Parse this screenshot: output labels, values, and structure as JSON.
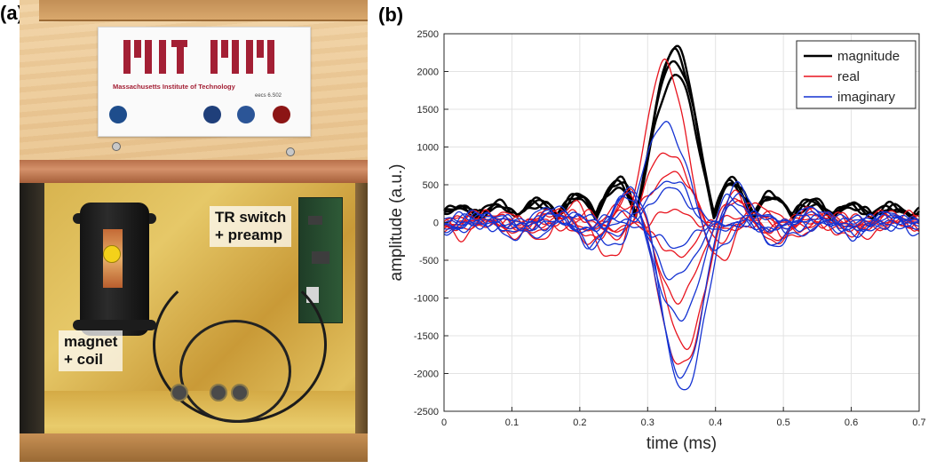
{
  "panels": {
    "a_label": "(a)",
    "b_label": "(b)"
  },
  "photo": {
    "subject": "MRI hardware enclosure",
    "labels": {
      "switch_line1": "TR switch",
      "switch_line2": "+ preamp",
      "magnet_line1": "magnet",
      "magnet_line2": "+ coil"
    },
    "sign": {
      "institution": "Massachusetts Institute of Technology",
      "course": "eecs 6.S02"
    },
    "colors": {
      "mit_red": "#a31f34",
      "gold_shield": "#d8b44f",
      "copper": "#b8704a"
    }
  },
  "chart_data": {
    "type": "line",
    "xlabel": "time (ms)",
    "ylabel": "amplitude (a.u.)",
    "xlim": [
      0,
      0.7
    ],
    "ylim": [
      -2500,
      2500
    ],
    "xticks": [
      0,
      0.1,
      0.2,
      0.3,
      0.4,
      0.5,
      0.6,
      0.7
    ],
    "xtick_labels": [
      "0",
      "0.1",
      "0.2",
      "0.3",
      "0.4",
      "0.5",
      "0.6",
      "0.7"
    ],
    "yticks": [
      -2500,
      -2000,
      -1500,
      -1000,
      -500,
      0,
      500,
      1000,
      1500,
      2000,
      2500
    ],
    "ytick_labels": [
      "-2500",
      "-2000",
      "-1500",
      "-1000",
      "-500",
      "0",
      "500",
      "1000",
      "1500",
      "2000",
      "2500"
    ],
    "grid": true,
    "legend_position": "top-right",
    "legend": [
      {
        "name": "magnitude",
        "color": "#000000"
      },
      {
        "name": "real",
        "color": "#e8141e"
      },
      {
        "name": "imaginary",
        "color": "#1432d2"
      }
    ],
    "peak_time_ms": 0.34,
    "series": [
      {
        "name": "magnitude",
        "color": "#000000",
        "count": 4,
        "peaks": [
          2230,
          2170,
          2080,
          1880
        ]
      },
      {
        "name": "real",
        "color": "#e8141e",
        "count": 8,
        "peaks": [
          2120,
          950,
          620,
          180,
          -420,
          -1050,
          -1900,
          -1620
        ]
      },
      {
        "name": "imaginary",
        "color": "#1432d2",
        "count": 8,
        "peaks": [
          1370,
          560,
          380,
          -250,
          -720,
          -1340,
          -1980,
          -2230
        ]
      }
    ]
  }
}
